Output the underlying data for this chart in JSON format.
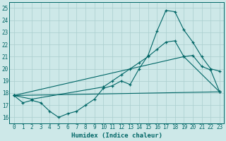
{
  "xlabel": "Humidex (Indice chaleur)",
  "bg_color": "#cde8e8",
  "line_color": "#006666",
  "grid_color": "#aacece",
  "xlim": [
    -0.5,
    23.5
  ],
  "ylim": [
    15.5,
    25.5
  ],
  "yticks": [
    16,
    17,
    18,
    19,
    20,
    21,
    22,
    23,
    24,
    25
  ],
  "xticks": [
    0,
    1,
    2,
    3,
    4,
    5,
    6,
    7,
    8,
    9,
    10,
    11,
    12,
    13,
    14,
    15,
    16,
    17,
    18,
    19,
    20,
    21,
    22,
    23
  ],
  "line1_x": [
    0,
    1,
    2,
    3,
    4,
    5,
    6,
    7,
    8,
    9,
    10,
    11,
    12,
    13,
    14,
    15,
    16,
    17,
    18,
    19,
    20,
    21,
    22,
    23
  ],
  "line1_y": [
    17.8,
    17.2,
    17.4,
    17.2,
    16.5,
    16.0,
    16.3,
    16.5,
    17.0,
    17.5,
    18.4,
    18.6,
    19.0,
    18.7,
    20.0,
    21.1,
    23.1,
    24.8,
    24.7,
    23.2,
    22.2,
    21.0,
    20.0,
    19.8
  ],
  "line2_x": [
    0,
    2,
    10,
    11,
    12,
    13,
    14,
    15,
    16,
    17,
    18,
    19,
    20,
    21,
    22,
    23
  ],
  "line2_y": [
    17.8,
    17.5,
    18.5,
    19.0,
    19.5,
    20.0,
    20.5,
    21.0,
    21.6,
    22.2,
    22.3,
    21.0,
    21.1,
    20.2,
    19.9,
    18.1
  ],
  "line3_x": [
    0,
    23
  ],
  "line3_y": [
    17.8,
    18.1
  ],
  "line4_x": [
    0,
    19,
    23
  ],
  "line4_y": [
    17.8,
    21.0,
    18.1
  ]
}
